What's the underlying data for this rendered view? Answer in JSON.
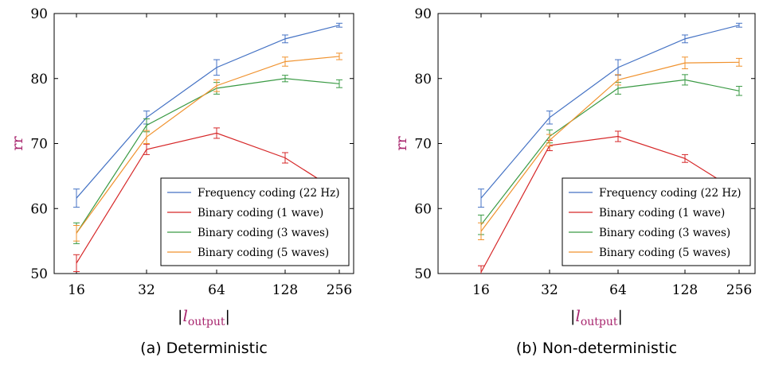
{
  "chart_data": [
    {
      "type": "line",
      "caption": "(a) Deterministic",
      "ylabel": "rr",
      "xlabel_main": "l",
      "xlabel_sub": "output",
      "x": [
        16,
        32,
        64,
        128,
        256
      ],
      "xscale": "log2",
      "ylim": [
        50,
        90
      ],
      "yticks": [
        50,
        60,
        70,
        80,
        90
      ],
      "grid": false,
      "legend_position": "bottom-right",
      "series": [
        {
          "name": "Frequency coding (22 Hz)",
          "color": "#4472c4",
          "values": [
            61.6,
            74.0,
            81.7,
            86.1,
            88.2
          ],
          "errors": [
            1.4,
            1.0,
            1.2,
            0.6,
            0.3
          ]
        },
        {
          "name": "Binary coding (1 wave)",
          "color": "#d62728",
          "values": [
            51.6,
            69.1,
            71.6,
            67.8,
            62.5
          ],
          "errors": [
            1.3,
            0.8,
            0.8,
            0.8,
            0.6
          ]
        },
        {
          "name": "Binary coding (3 waves)",
          "color": "#3a9a44",
          "values": [
            56.2,
            72.8,
            78.5,
            80.0,
            79.2
          ],
          "errors": [
            1.6,
            1.0,
            0.9,
            0.5,
            0.6
          ]
        },
        {
          "name": "Binary coding (5 waves)",
          "color": "#f0922e",
          "values": [
            56.2,
            71.0,
            78.9,
            82.6,
            83.4
          ],
          "errors": [
            1.2,
            1.0,
            0.9,
            0.7,
            0.5
          ]
        }
      ]
    },
    {
      "type": "line",
      "caption": "(b) Non-deterministic",
      "ylabel": "rr",
      "xlabel_main": "l",
      "xlabel_sub": "output",
      "x": [
        16,
        32,
        64,
        128,
        256
      ],
      "xscale": "log2",
      "ylim": [
        50,
        90
      ],
      "yticks": [
        50,
        60,
        70,
        80,
        90
      ],
      "grid": false,
      "legend_position": "bottom-right",
      "series": [
        {
          "name": "Frequency coding (22 Hz)",
          "color": "#4472c4",
          "values": [
            61.6,
            74.0,
            81.7,
            86.1,
            88.2
          ],
          "errors": [
            1.4,
            1.0,
            1.2,
            0.6,
            0.3
          ]
        },
        {
          "name": "Binary coding (1 wave)",
          "color": "#d62728",
          "values": [
            50.2,
            69.7,
            71.1,
            67.7,
            62.5
          ],
          "errors": [
            1.0,
            0.8,
            0.8,
            0.6,
            0.6
          ]
        },
        {
          "name": "Binary coding (3 waves)",
          "color": "#3a9a44",
          "values": [
            57.5,
            71.1,
            78.5,
            79.8,
            78.1
          ],
          "errors": [
            1.5,
            1.0,
            0.9,
            0.8,
            0.7
          ]
        },
        {
          "name": "Binary coding (5 waves)",
          "color": "#f0922e",
          "values": [
            56.5,
            70.5,
            79.8,
            82.4,
            82.5
          ],
          "errors": [
            1.3,
            0.9,
            0.8,
            0.9,
            0.6
          ]
        }
      ]
    }
  ]
}
